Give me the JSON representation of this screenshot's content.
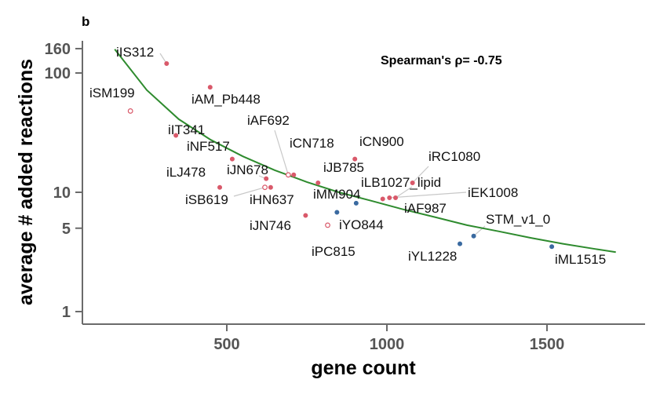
{
  "panel_label": "b",
  "chart_data": {
    "type": "scatter",
    "xlabel": "gene count",
    "ylabel": "average # added reactions",
    "xlim": [
      100,
      1800
    ],
    "ylim": [
      0.76,
      200
    ],
    "y_scale": "log",
    "x_ticks": [
      500,
      1000,
      1500
    ],
    "y_ticks": [
      1,
      5,
      10,
      100,
      160
    ],
    "grid": false,
    "annotation": "Spearman's ρ= -0.75",
    "colors": {
      "pink": "#d9596a",
      "blue": "#3a6aa0",
      "fit": "#2e8b2e",
      "axis": "#6b6b6b",
      "leader": "#c8c8c8"
    },
    "points": [
      {
        "label": "iIS312",
        "x": 312,
        "y": 120,
        "color": "pink",
        "hollow": false
      },
      {
        "label": "iSM199",
        "x": 199,
        "y": 48,
        "color": "pink",
        "hollow": true
      },
      {
        "label": "iAM_Pb448",
        "x": 448,
        "y": 76,
        "color": "pink",
        "hollow": false
      },
      {
        "label": "iIT341",
        "x": 341,
        "y": 30,
        "color": "pink",
        "hollow": false
      },
      {
        "label": "iNF517",
        "x": 517,
        "y": 19,
        "color": "pink",
        "hollow": false
      },
      {
        "label": "iLJ478",
        "x": 478,
        "y": 11,
        "color": "pink",
        "hollow": false
      },
      {
        "label": "iJN678",
        "x": 623,
        "y": 13,
        "color": "pink",
        "hollow": false
      },
      {
        "label": "iSB619",
        "x": 619,
        "y": 11,
        "color": "pink",
        "hollow": true
      },
      {
        "label": "iHN637",
        "x": 637,
        "y": 11,
        "color": "pink",
        "hollow": false
      },
      {
        "label": "iAF692",
        "x": 692,
        "y": 14,
        "color": "pink",
        "hollow": true
      },
      {
        "label": "iCN718",
        "x": 709,
        "y": 14,
        "color": "pink",
        "hollow": false
      },
      {
        "label": "iJB785",
        "x": 785,
        "y": 12,
        "color": "pink",
        "hollow": false
      },
      {
        "label": "iCN900",
        "x": 900,
        "y": 19,
        "color": "pink",
        "hollow": false
      },
      {
        "label": "iMM904",
        "x": 904,
        "y": 8.1,
        "color": "blue",
        "hollow": false
      },
      {
        "label": "iLB1027_lipid",
        "x": 1027,
        "y": 9,
        "color": "pink",
        "hollow": false
      },
      {
        "label": "iAF987",
        "x": 987,
        "y": 8.8,
        "color": "pink",
        "hollow": false
      },
      {
        "label": "iEK1008",
        "x": 1008,
        "y": 9,
        "color": "pink",
        "hollow": false
      },
      {
        "label": "iRC1080",
        "x": 1080,
        "y": 12,
        "color": "pink",
        "hollow": false
      },
      {
        "label": "iJN746",
        "x": 746,
        "y": 6.4,
        "color": "pink",
        "hollow": false
      },
      {
        "label": "iYO844",
        "x": 844,
        "y": 6.8,
        "color": "blue",
        "hollow": false
      },
      {
        "label": "iPC815",
        "x": 815,
        "y": 5.3,
        "color": "pink",
        "hollow": true
      },
      {
        "label": "STM_v1_0",
        "x": 1271,
        "y": 4.3,
        "color": "blue",
        "hollow": false
      },
      {
        "label": "iYL1228",
        "x": 1228,
        "y": 3.7,
        "color": "blue",
        "hollow": false
      },
      {
        "label": "iML1515",
        "x": 1515,
        "y": 3.5,
        "color": "blue",
        "hollow": false
      }
    ],
    "fit_curve": [
      {
        "x": 150,
        "y": 158
      },
      {
        "x": 250,
        "y": 72
      },
      {
        "x": 350,
        "y": 41
      },
      {
        "x": 450,
        "y": 27.5
      },
      {
        "x": 550,
        "y": 20
      },
      {
        "x": 650,
        "y": 15.3
      },
      {
        "x": 750,
        "y": 12.2
      },
      {
        "x": 850,
        "y": 10
      },
      {
        "x": 950,
        "y": 8.5
      },
      {
        "x": 1050,
        "y": 7.2
      },
      {
        "x": 1150,
        "y": 6.2
      },
      {
        "x": 1250,
        "y": 5.3
      },
      {
        "x": 1350,
        "y": 4.7
      },
      {
        "x": 1450,
        "y": 4.15
      },
      {
        "x": 1550,
        "y": 3.7
      },
      {
        "x": 1650,
        "y": 3.35
      },
      {
        "x": 1715,
        "y": 3.15
      }
    ]
  }
}
